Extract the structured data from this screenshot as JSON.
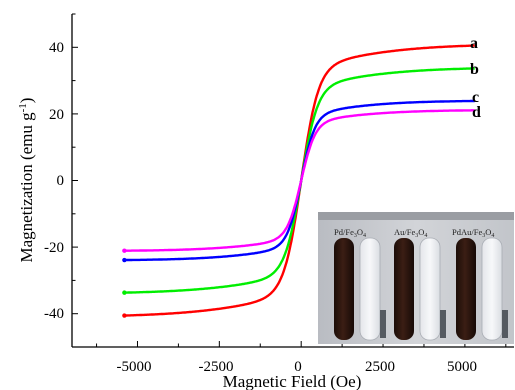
{
  "chart_data": {
    "type": "line",
    "xlabel": "Magnetic Field (Oe)",
    "ylabel_main": "Magnetization (emu g",
    "ylabel_sup": "-1",
    "ylabel_close": ")",
    "xlim": [
      -7000,
      6500
    ],
    "ylim": [
      -50,
      50
    ],
    "xticks": [
      -5000,
      -2500,
      0,
      2500,
      5000
    ],
    "xtick_labels": [
      "-5000",
      "-2500",
      "0",
      "2500",
      "5000"
    ],
    "yticks": [
      -40,
      -20,
      0,
      20,
      40
    ],
    "ytick_labels": [
      "-40",
      "-20",
      "0",
      "20",
      "40"
    ],
    "series": [
      {
        "name": "a",
        "color": "#ff0000",
        "ms": 41.0,
        "k": 520,
        "x_range": [
          -5400,
          5300
        ]
      },
      {
        "name": "b",
        "color": "#00ee00",
        "ms": 34.0,
        "k": 500,
        "x_range": [
          -5400,
          5300
        ]
      },
      {
        "name": "c",
        "color": "#0000ff",
        "ms": 24.0,
        "k": 420,
        "x_range": [
          -5400,
          5300
        ]
      },
      {
        "name": "d",
        "color": "#ff00ff",
        "ms": 21.2,
        "k": 430,
        "x_range": [
          -5400,
          5300
        ]
      }
    ],
    "inset": {
      "labels": [
        {
          "name": "Pd/Fe",
          "sub1": "3",
          "mid": "O",
          "sub2": "4"
        },
        {
          "name": "Au/Fe",
          "sub1": "3",
          "mid": "O",
          "sub2": "4"
        },
        {
          "name": "PdAu/Fe",
          "sub1": "3",
          "mid": "O",
          "sub2": "4"
        }
      ]
    }
  }
}
